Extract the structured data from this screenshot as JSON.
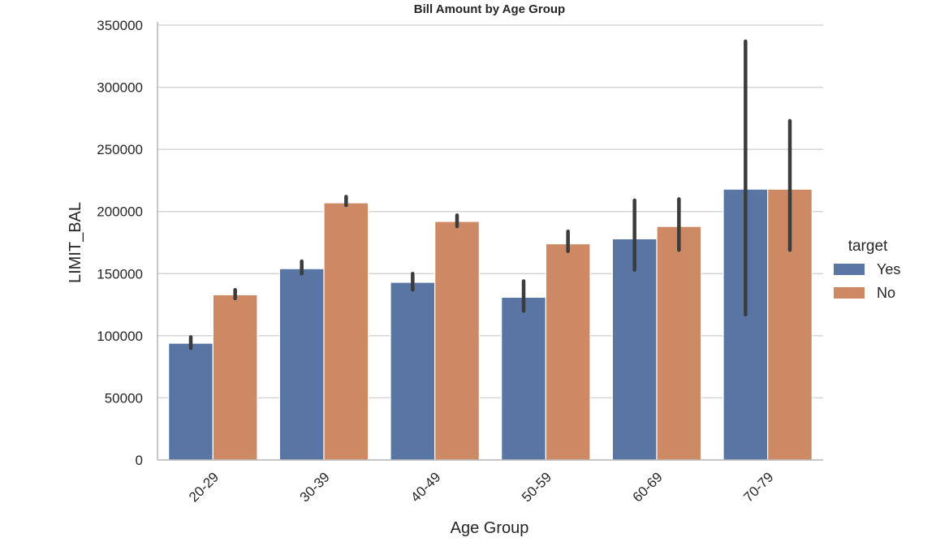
{
  "chart_data": {
    "type": "bar",
    "title": "Bill Amount by Age Group",
    "xlabel": "Age Group",
    "ylabel": "LIMIT_BAL",
    "categories": [
      "20-29",
      "30-39",
      "40-49",
      "50-59",
      "60-69",
      "70-79"
    ],
    "ylim": [
      0,
      350000
    ],
    "yticks": [
      0,
      50000,
      100000,
      150000,
      200000,
      250000,
      300000,
      350000
    ],
    "ytick_labels": [
      "0",
      "50000",
      "100000",
      "150000",
      "200000",
      "250000",
      "300000",
      "350000"
    ],
    "grid": "horizontal",
    "legend": {
      "title": "target",
      "placement": "right"
    },
    "series": [
      {
        "name": "Yes",
        "color": "#5875a4",
        "values": [
          94000,
          154000,
          143000,
          131000,
          178000,
          218000
        ],
        "error_low": [
          90000,
          150000,
          137000,
          120000,
          153000,
          117000
        ],
        "error_high": [
          99000,
          160000,
          150000,
          144000,
          209000,
          337000
        ]
      },
      {
        "name": "No",
        "color": "#cc8963",
        "values": [
          133000,
          207000,
          192000,
          174000,
          188000,
          218000
        ],
        "error_low": [
          130000,
          205000,
          188000,
          168000,
          169000,
          169000
        ],
        "error_high": [
          137000,
          212000,
          197000,
          184000,
          210000,
          273000
        ]
      }
    ],
    "error_bar_color": "#3c3c3c",
    "grid_color": "#d5d5d5",
    "axis_color": "#b5b5b5"
  }
}
